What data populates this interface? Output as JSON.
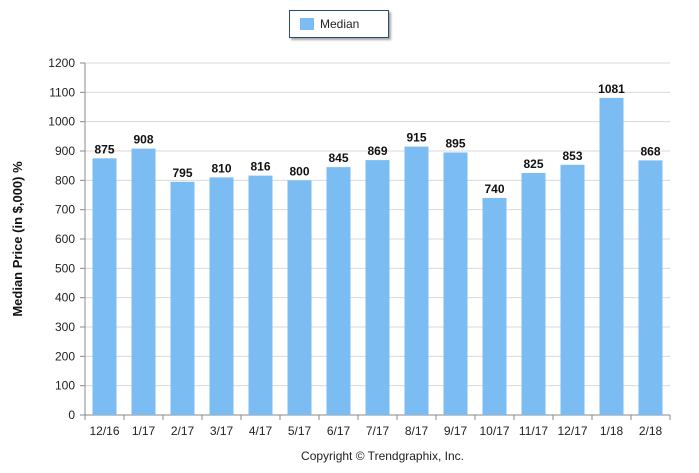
{
  "chart_data": {
    "type": "bar",
    "categories": [
      "12/16",
      "1/17",
      "2/17",
      "3/17",
      "4/17",
      "5/17",
      "6/17",
      "7/17",
      "8/17",
      "9/17",
      "10/17",
      "11/17",
      "12/17",
      "1/18",
      "2/18"
    ],
    "series": [
      {
        "name": "Median",
        "values": [
          875,
          908,
          795,
          810,
          816,
          800,
          845,
          869,
          915,
          895,
          740,
          825,
          853,
          1081,
          868
        ]
      }
    ],
    "ylabel": "Median Price (in $,000) %",
    "xlabel": "",
    "ylim": [
      0,
      1200
    ],
    "yticks": [
      0,
      100,
      200,
      300,
      400,
      500,
      600,
      700,
      800,
      900,
      1000,
      1100,
      1200
    ],
    "grid": true,
    "legend": "top-center",
    "bar_color": "#7bbcf2",
    "footer": "Copyright © Trendgraphix, Inc."
  }
}
